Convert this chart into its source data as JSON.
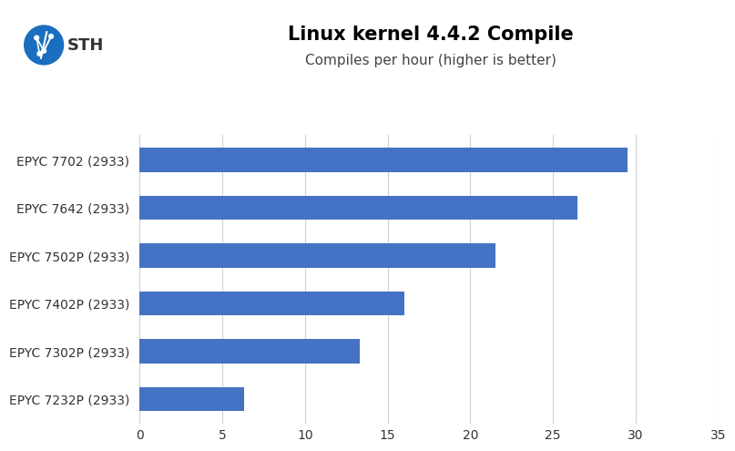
{
  "title": "Linux kernel 4.4.2 Compile",
  "subtitle": "Compiles per hour (higher is better)",
  "categories": [
    "EPYC 7232P (2933)",
    "EPYC 7302P (2933)",
    "EPYC 7402P (2933)",
    "EPYC 7502P (2933)",
    "EPYC 7642 (2933)",
    "EPYC 7702 (2933)"
  ],
  "values": [
    6.3,
    13.3,
    16.0,
    21.5,
    26.5,
    29.5
  ],
  "bar_color": "#4472C4",
  "xlim": [
    0,
    35
  ],
  "xticks": [
    0,
    5,
    10,
    15,
    20,
    25,
    30,
    35
  ],
  "background_color": "#ffffff",
  "grid_color": "#d0d0d0",
  "title_fontsize": 15,
  "subtitle_fontsize": 11,
  "tick_fontsize": 10,
  "label_fontsize": 10,
  "bar_height": 0.5
}
